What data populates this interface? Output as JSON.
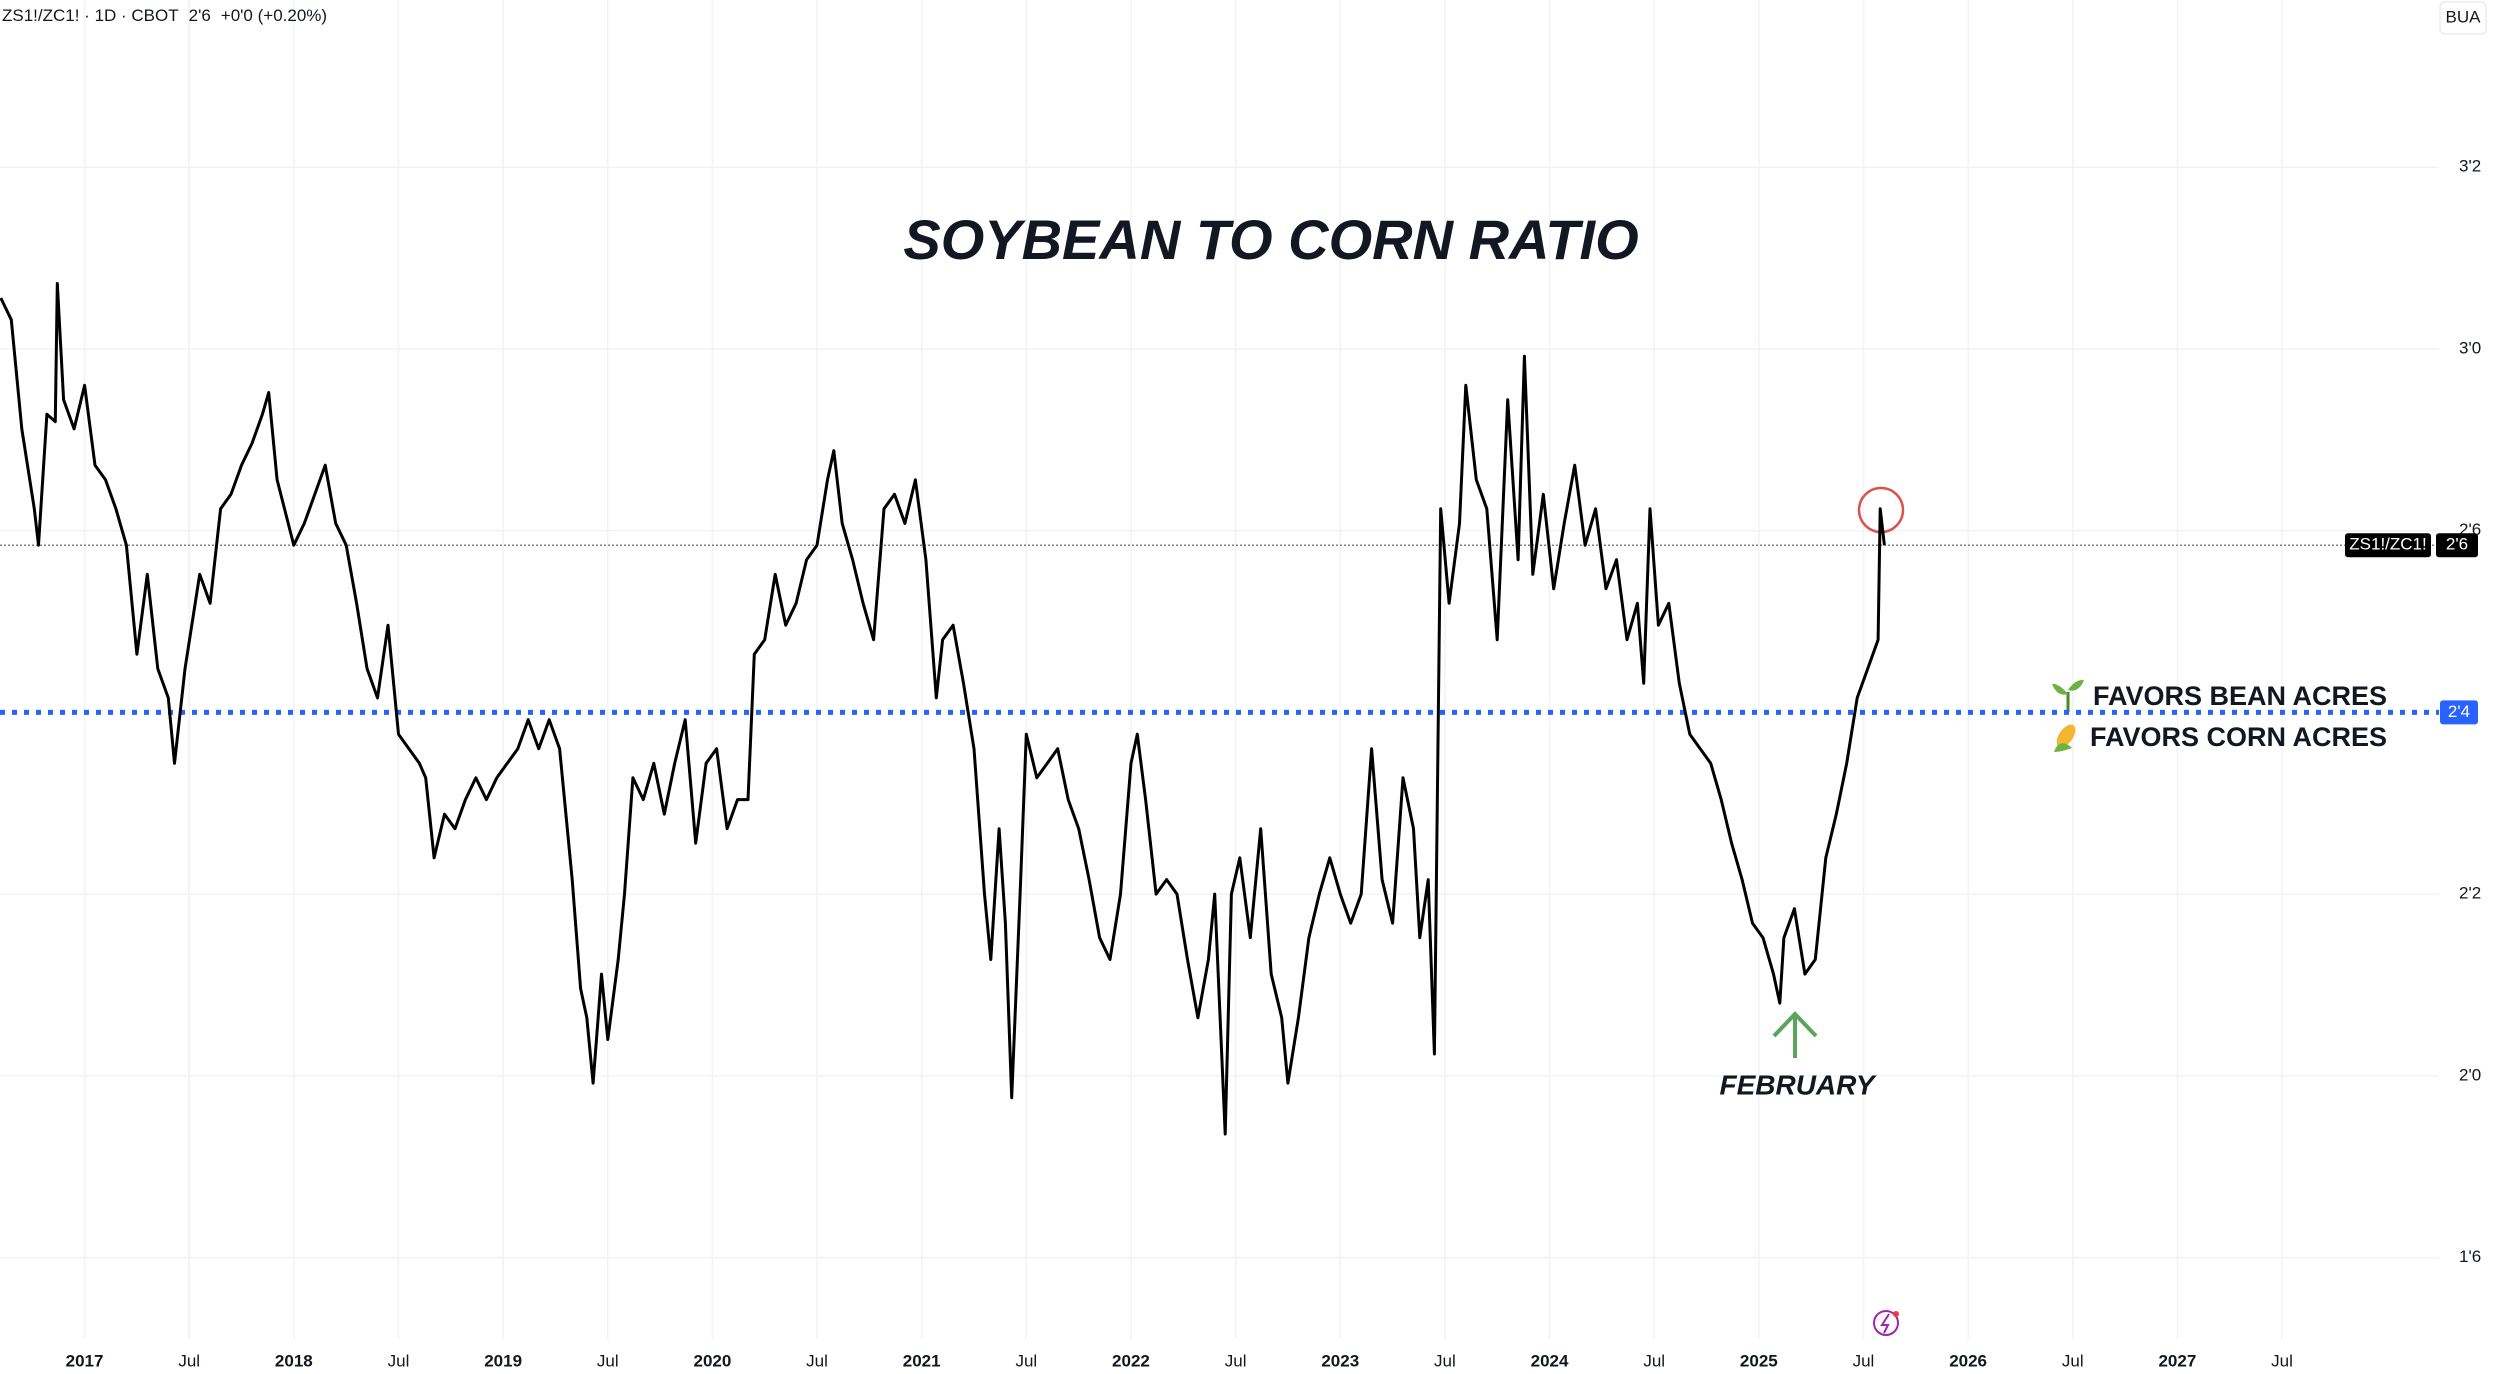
{
  "chart_data": {
    "type": "line",
    "header": {
      "symbol": "ZS1!/ZC1! · 1D · CBOT",
      "price": "2'6",
      "change": "+0'0 (+0.20%)"
    },
    "badge": "BUA",
    "title": "SOYBEAN TO CORN RATIO",
    "annotations": {
      "low": "FEBRUARY",
      "above": "FAVORS BEAN ACRES",
      "below": "FAVORS CORN ACRES"
    },
    "color": "#000000",
    "grid": true,
    "xlim": [
      2016.596,
      2028.25
    ],
    "ylim": [
      1.638,
      3.48
    ],
    "xticks": [
      {
        "value": 2017,
        "label": "2017"
      },
      {
        "value": 2017.5,
        "label": "Jul"
      },
      {
        "value": 2018,
        "label": "2018"
      },
      {
        "value": 2018.5,
        "label": "Jul"
      },
      {
        "value": 2019,
        "label": "2019"
      },
      {
        "value": 2019.5,
        "label": "Jul"
      },
      {
        "value": 2020,
        "label": "2020"
      },
      {
        "value": 2020.5,
        "label": "Jul"
      },
      {
        "value": 2021,
        "label": "2021"
      },
      {
        "value": 2021.5,
        "label": "Jul"
      },
      {
        "value": 2022,
        "label": "2022"
      },
      {
        "value": 2022.5,
        "label": "Jul"
      },
      {
        "value": 2023,
        "label": "2023"
      },
      {
        "value": 2023.5,
        "label": "Jul"
      },
      {
        "value": 2024,
        "label": "2024"
      },
      {
        "value": 2024.5,
        "label": "Jul"
      },
      {
        "value": 2025,
        "label": "2025"
      },
      {
        "value": 2025.5,
        "label": "Jul"
      },
      {
        "value": 2026,
        "label": "2026"
      },
      {
        "value": 2026.5,
        "label": "Jul"
      },
      {
        "value": 2027,
        "label": "2027"
      },
      {
        "value": 2027.5,
        "label": "Jul"
      }
    ],
    "yticks": [
      {
        "value": 1.75,
        "label": "1'6"
      },
      {
        "value": 2.0,
        "label": "2'0"
      },
      {
        "value": 2.25,
        "label": "2'2"
      },
      {
        "value": 2.75,
        "label": "2'6"
      },
      {
        "value": 3.0,
        "label": "3'0"
      },
      {
        "value": 3.25,
        "label": "3'2"
      }
    ],
    "reference_line": {
      "value": 2.5,
      "label": "2'4",
      "color": "#2962ff"
    },
    "last_price": {
      "value": 2.73,
      "label": "2'6",
      "name": "ZS1!/ZC1!"
    },
    "x": [
      2016.6,
      2016.65,
      2016.7,
      2016.76,
      2016.78,
      2016.82,
      2016.86,
      2016.87,
      2016.9,
      2016.95,
      2017.0,
      2017.05,
      2017.1,
      2017.15,
      2017.2,
      2017.25,
      2017.3,
      2017.35,
      2017.4,
      2017.43,
      2017.48,
      2017.55,
      2017.6,
      2017.65,
      2017.7,
      2017.75,
      2017.8,
      2017.85,
      2017.88,
      2017.92,
      2018.0,
      2018.05,
      2018.1,
      2018.15,
      2018.2,
      2018.25,
      2018.3,
      2018.35,
      2018.4,
      2018.45,
      2018.5,
      2018.55,
      2018.6,
      2018.63,
      2018.67,
      2018.72,
      2018.77,
      2018.82,
      2018.87,
      2018.92,
      2018.97,
      2019.02,
      2019.07,
      2019.12,
      2019.17,
      2019.22,
      2019.27,
      2019.3,
      2019.33,
      2019.37,
      2019.4,
      2019.43,
      2019.47,
      2019.5,
      2019.55,
      2019.58,
      2019.62,
      2019.67,
      2019.72,
      2019.77,
      2019.82,
      2019.87,
      2019.92,
      2019.97,
      2020.02,
      2020.07,
      2020.12,
      2020.17,
      2020.2,
      2020.25,
      2020.3,
      2020.35,
      2020.4,
      2020.45,
      2020.5,
      2020.55,
      2020.58,
      2020.62,
      2020.67,
      2020.72,
      2020.77,
      2020.82,
      2020.87,
      2020.92,
      2020.97,
      2021.02,
      2021.07,
      2021.1,
      2021.15,
      2021.2,
      2021.25,
      2021.3,
      2021.33,
      2021.37,
      2021.4,
      2021.43,
      2021.47,
      2021.5,
      2021.55,
      2021.6,
      2021.65,
      2021.7,
      2021.75,
      2021.8,
      2021.85,
      2021.9,
      2021.95,
      2022.0,
      2022.03,
      2022.07,
      2022.12,
      2022.17,
      2022.22,
      2022.27,
      2022.32,
      2022.37,
      2022.4,
      2022.45,
      2022.48,
      2022.52,
      2022.57,
      2022.62,
      2022.67,
      2022.72,
      2022.75,
      2022.8,
      2022.85,
      2022.9,
      2022.95,
      2023.0,
      2023.05,
      2023.1,
      2023.15,
      2023.2,
      2023.25,
      2023.3,
      2023.35,
      2023.38,
      2023.42,
      2023.45,
      2023.48,
      2023.52,
      2023.57,
      2023.6,
      2023.65,
      2023.7,
      2023.75,
      2023.8,
      2023.85,
      2023.88,
      2023.92,
      2023.97,
      2024.02,
      2024.07,
      2024.12,
      2024.17,
      2024.22,
      2024.27,
      2024.32,
      2024.37,
      2024.42,
      2024.45,
      2024.48,
      2024.52,
      2024.57,
      2024.62,
      2024.67,
      2024.72,
      2024.77,
      2024.82,
      2024.87,
      2024.92,
      2024.97,
      2025.02,
      2025.07,
      2025.1,
      2025.12,
      2025.17,
      2025.22,
      2025.27,
      2025.32,
      2025.37,
      2025.42,
      2025.47,
      2025.52,
      2025.57,
      2025.58,
      2025.6
    ],
    "values": [
      3.07,
      3.04,
      2.89,
      2.78,
      2.73,
      2.91,
      2.9,
      3.09,
      2.93,
      2.89,
      2.95,
      2.84,
      2.82,
      2.78,
      2.73,
      2.58,
      2.69,
      2.56,
      2.52,
      2.43,
      2.56,
      2.69,
      2.65,
      2.78,
      2.8,
      2.84,
      2.87,
      2.91,
      2.94,
      2.82,
      2.73,
      2.76,
      2.8,
      2.84,
      2.76,
      2.73,
      2.65,
      2.56,
      2.52,
      2.62,
      2.47,
      2.45,
      2.43,
      2.41,
      2.3,
      2.36,
      2.34,
      2.38,
      2.41,
      2.38,
      2.41,
      2.43,
      2.45,
      2.49,
      2.45,
      2.49,
      2.45,
      2.36,
      2.27,
      2.12,
      2.08,
      1.99,
      2.14,
      2.05,
      2.16,
      2.25,
      2.41,
      2.38,
      2.43,
      2.36,
      2.43,
      2.49,
      2.32,
      2.43,
      2.45,
      2.34,
      2.38,
      2.38,
      2.58,
      2.6,
      2.69,
      2.62,
      2.65,
      2.71,
      2.73,
      2.82,
      2.86,
      2.76,
      2.71,
      2.65,
      2.6,
      2.78,
      2.8,
      2.76,
      2.82,
      2.71,
      2.52,
      2.6,
      2.62,
      2.54,
      2.45,
      2.25,
      2.16,
      2.34,
      2.21,
      1.97,
      2.25,
      2.47,
      2.41,
      2.43,
      2.45,
      2.38,
      2.34,
      2.27,
      2.19,
      2.16,
      2.25,
      2.43,
      2.47,
      2.38,
      2.25,
      2.27,
      2.25,
      2.16,
      2.08,
      2.16,
      2.25,
      1.92,
      2.25,
      2.3,
      2.19,
      2.34,
      2.14,
      2.08,
      1.99,
      2.08,
      2.19,
      2.25,
      2.3,
      2.25,
      2.21,
      2.25,
      2.45,
      2.27,
      2.21,
      2.41,
      2.34,
      2.19,
      2.27,
      2.03,
      2.78,
      2.65,
      2.76,
      2.95,
      2.82,
      2.78,
      2.6,
      2.93,
      2.71,
      2.99,
      2.69,
      2.8,
      2.67,
      2.76,
      2.84,
      2.73,
      2.78,
      2.67,
      2.71,
      2.6,
      2.65,
      2.54,
      2.78,
      2.62,
      2.65,
      2.54,
      2.47,
      2.45,
      2.43,
      2.38,
      2.32,
      2.27,
      2.21,
      2.19,
      2.14,
      2.1,
      2.19,
      2.23,
      2.14,
      2.16,
      2.3,
      2.36,
      2.43,
      2.52,
      2.56,
      2.6,
      2.78,
      2.73
    ]
  }
}
